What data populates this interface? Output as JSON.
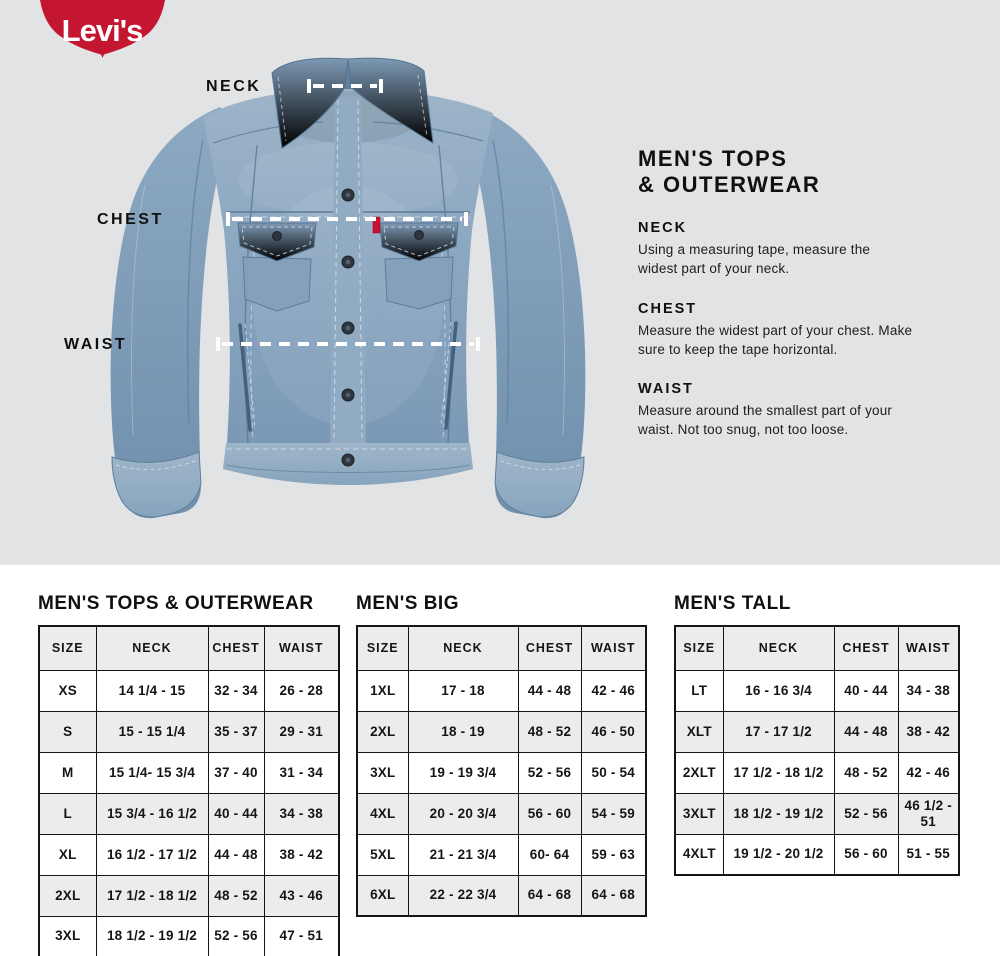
{
  "brand": {
    "logo_text": "Levi's",
    "registered_mark": "®"
  },
  "hero": {
    "title": "MEN'S TOPS\n& OUTERWEAR",
    "sections": [
      {
        "heading": "NECK",
        "body": "Using a measuring tape, measure the\nwidest part of your neck."
      },
      {
        "heading": "CHEST",
        "body": "Measure the widest part of your chest. Make\nsure to keep the tape horizontal."
      },
      {
        "heading": "WAIST",
        "body": "Measure around the smallest part of your\nwaist. Not too snug, not too loose."
      }
    ],
    "measurements": [
      {
        "label": "NECK"
      },
      {
        "label": "CHEST"
      },
      {
        "label": "WAIST"
      }
    ]
  },
  "tables": [
    {
      "title": "MEN'S TOPS & OUTERWEAR",
      "headers": [
        "SIZE",
        "NECK",
        "CHEST",
        "WAIST"
      ],
      "rows": [
        [
          "XS",
          "14 1/4 - 15",
          "32 - 34",
          "26 - 28"
        ],
        [
          "S",
          "15 - 15 1/4",
          "35 - 37",
          "29 - 31"
        ],
        [
          "M",
          "15 1/4- 15 3/4",
          "37 - 40",
          "31 - 34"
        ],
        [
          "L",
          "15 3/4 - 16 1/2",
          "40 - 44",
          "34 - 38"
        ],
        [
          "XL",
          "16 1/2 - 17 1/2",
          "44 - 48",
          "38 - 42"
        ],
        [
          "2XL",
          "17 1/2 - 18 1/2",
          "48 - 52",
          "43 - 46"
        ],
        [
          "3XL",
          "18 1/2 - 19 1/2",
          "52 - 56",
          "47 - 51"
        ]
      ]
    },
    {
      "title": "MEN'S BIG",
      "headers": [
        "SIZE",
        "NECK",
        "CHEST",
        "WAIST"
      ],
      "rows": [
        [
          "1XL",
          "17 - 18",
          "44 - 48",
          "42 - 46"
        ],
        [
          "2XL",
          "18 - 19",
          "48 - 52",
          "46 - 50"
        ],
        [
          "3XL",
          "19 - 19 3/4",
          "52 - 56",
          "50 - 54"
        ],
        [
          "4XL",
          "20 - 20 3/4",
          "56 - 60",
          "54 - 59"
        ],
        [
          "5XL",
          "21 - 21 3/4",
          "60- 64",
          "59 - 63"
        ],
        [
          "6XL",
          "22 - 22 3/4",
          "64 - 68",
          "64 - 68"
        ]
      ]
    },
    {
      "title": "MEN'S TALL",
      "headers": [
        "SIZE",
        "NECK",
        "CHEST",
        "WAIST"
      ],
      "rows": [
        [
          "LT",
          "16 - 16 3/4",
          "40 - 44",
          "34 - 38"
        ],
        [
          "XLT",
          "17 - 17 1/2",
          "44 - 48",
          "38 - 42"
        ],
        [
          "2XLT",
          "17 1/2 - 18 1/2",
          "48 - 52",
          "42 - 46"
        ],
        [
          "3XLT",
          "18 1/2 - 19 1/2",
          "52 - 56",
          "46 1/2 - 51"
        ],
        [
          "4XLT",
          "19 1/2 - 20 1/2",
          "56 - 60",
          "51 - 55"
        ]
      ]
    }
  ],
  "colors": {
    "brand_red": "#c41531",
    "hero_background": "#e2e3e5",
    "table_stripe": "#ececec",
    "text": "#151515",
    "measure_line": "#ffffff",
    "denim": "#87a2bc",
    "patch_orange": "#c6893b"
  }
}
